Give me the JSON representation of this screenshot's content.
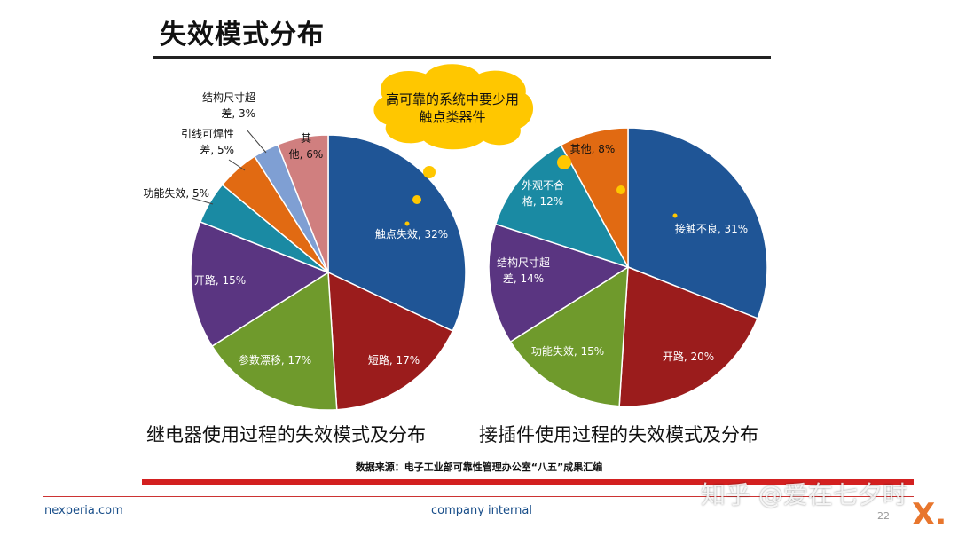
{
  "slide": {
    "title": "失效模式分布",
    "callout": [
      "高可靠的系统中要少用",
      "触点类器件"
    ],
    "source": "数据来源：电子工业部可靠性管理办公室“八五”成果汇编",
    "footer_left": "nexperia.com",
    "footer_mid": "company internal",
    "page_number": "22",
    "logo_text": "X.",
    "watermark": "知乎 @爱在七夕时"
  },
  "chart_data": [
    {
      "type": "pie",
      "title": "继电器使用过程的失效模式及分布",
      "slices": [
        {
          "label": [
            "触点失效, 32%"
          ],
          "value": 32,
          "color": "#1f5596"
        },
        {
          "label": [
            "短路, 17%"
          ],
          "value": 17,
          "color": "#9b1c1c"
        },
        {
          "label": [
            "参数漂移, 17%"
          ],
          "value": 17,
          "color": "#6f9a2c"
        },
        {
          "label": [
            "开路, 15%"
          ],
          "value": 15,
          "color": "#5a3581"
        },
        {
          "label": [
            "功能失效, 5%"
          ],
          "value": 5,
          "color": "#1a8aa3"
        },
        {
          "label": [
            "引线可焊性",
            "差, 5%"
          ],
          "value": 5,
          "color": "#e16a12"
        },
        {
          "label": [
            "结构尺寸超",
            "差, 3%"
          ],
          "value": 3,
          "color": "#7f9fd3"
        },
        {
          "label": [
            "其",
            "他, 6%"
          ],
          "value": 6,
          "color": "#d07f7f"
        }
      ]
    },
    {
      "type": "pie",
      "title": "接插件使用过程的失效模式及分布",
      "slices": [
        {
          "label": [
            "接触不良, 31%"
          ],
          "value": 31,
          "color": "#1f5596"
        },
        {
          "label": [
            "开路, 20%"
          ],
          "value": 20,
          "color": "#9b1c1c"
        },
        {
          "label": [
            "功能失效, 15%"
          ],
          "value": 15,
          "color": "#6f9a2c"
        },
        {
          "label": [
            "结构尺寸超",
            "差, 14%"
          ],
          "value": 14,
          "color": "#5a3581"
        },
        {
          "label": [
            "外观不合",
            "格, 12%"
          ],
          "value": 12,
          "color": "#1a8aa3"
        },
        {
          "label": [
            "其他, 8%"
          ],
          "value": 8,
          "color": "#e16a12"
        }
      ]
    }
  ]
}
